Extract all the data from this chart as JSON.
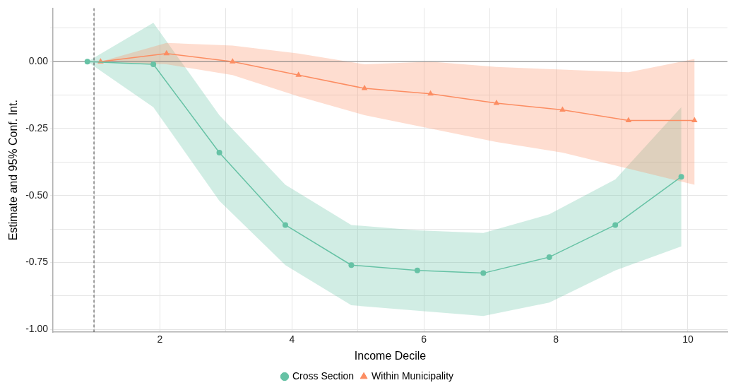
{
  "chart_data": {
    "type": "line",
    "xlabel": "Income Decile",
    "ylabel": "Estimate and 95% Conf. Int.",
    "xlim": [
      0.38,
      10.6
    ],
    "ylim": [
      -1.01,
      0.2
    ],
    "xticks": [
      {
        "value": 1,
        "label": null
      },
      2,
      {
        "value": 3,
        "label": null
      },
      4,
      {
        "value": 5,
        "label": null
      },
      6,
      {
        "value": 7,
        "label": null
      },
      8,
      {
        "value": 9,
        "label": null
      },
      10
    ],
    "yticks": [
      {
        "value": -1,
        "label": "-1.00"
      },
      {
        "value": -0.875,
        "label": null
      },
      {
        "value": -0.75,
        "label": "-0.75"
      },
      {
        "value": -0.625,
        "label": null
      },
      {
        "value": -0.5,
        "label": "-0.50"
      },
      {
        "value": -0.375,
        "label": null
      },
      {
        "value": -0.25,
        "label": "-0.25"
      },
      {
        "value": -0.125,
        "label": null
      },
      {
        "value": 0,
        "label": "0.00"
      },
      {
        "value": 0.125,
        "label": null
      }
    ],
    "grid": true,
    "legend": "bottom",
    "line_style": "solid",
    "ref_lines": [
      {
        "axis": "y",
        "value": 0,
        "color": "#7f7f7f",
        "line_style": "solid"
      },
      {
        "axis": "x",
        "value": 1,
        "color": "#444444",
        "line_style": "dashed"
      }
    ],
    "series": [
      {
        "name": "Cross Section",
        "color": "#66c2a5",
        "marker": "circle",
        "x": [
          0.9,
          1.9,
          2.9,
          3.9,
          4.9,
          5.9,
          6.9,
          7.9,
          8.9,
          9.9
        ],
        "values": [
          0,
          -0.01,
          -0.34,
          -0.61,
          -0.76,
          -0.78,
          -0.79,
          -0.73,
          -0.61,
          -0.43
        ],
        "lower": [
          0,
          -0.17,
          -0.52,
          -0.76,
          -0.91,
          -0.93,
          -0.95,
          -0.9,
          -0.78,
          -0.69
        ],
        "upper": [
          0,
          0.145,
          -0.2,
          -0.46,
          -0.61,
          -0.63,
          -0.64,
          -0.57,
          -0.44,
          -0.17
        ]
      },
      {
        "name": "Within Municipality",
        "color": "#fc8d62",
        "marker": "triangle",
        "x": [
          1.1,
          2.1,
          3.1,
          4.1,
          5.1,
          6.1,
          7.1,
          8.1,
          9.1,
          10.1
        ],
        "values": [
          0,
          0.03,
          0,
          -0.05,
          -0.1,
          -0.12,
          -0.155,
          -0.18,
          -0.22,
          -0.22
        ],
        "lower": [
          0,
          -0.01,
          -0.05,
          -0.13,
          -0.2,
          -0.25,
          -0.3,
          -0.34,
          -0.4,
          -0.46
        ],
        "upper": [
          0,
          0.07,
          0.06,
          0.03,
          -0.01,
          0,
          -0.02,
          -0.03,
          -0.04,
          0.01
        ]
      }
    ]
  }
}
